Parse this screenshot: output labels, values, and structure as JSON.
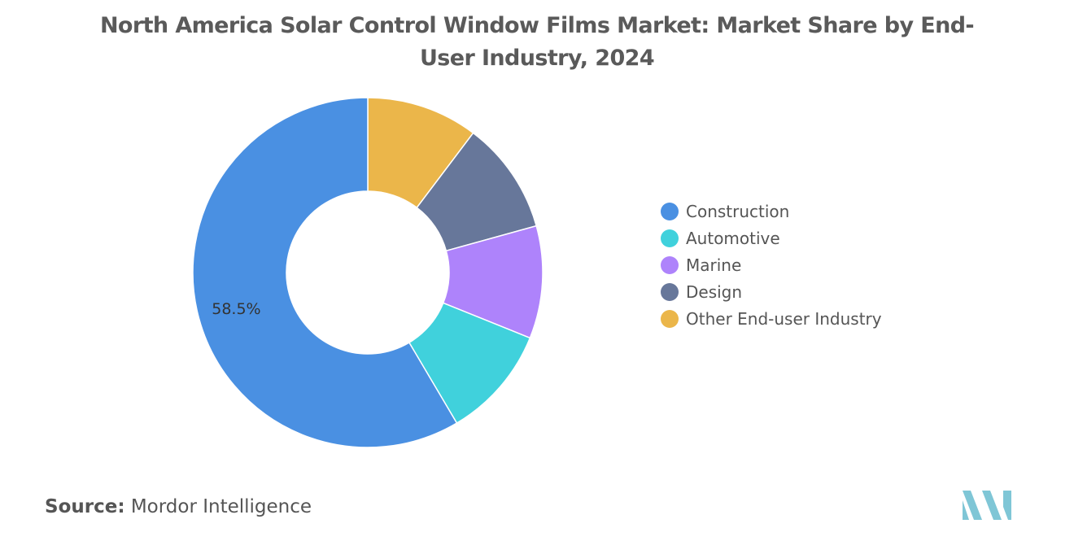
{
  "title": "North America Solar Control Window Films Market: Market Share by End-User Industry, 2024",
  "source": {
    "label": "Source:",
    "text": "Mordor Intelligence"
  },
  "chart_data": {
    "type": "pie",
    "style": "donut",
    "title": "North America Solar Control Window Films Market: Market Share by End-User Industry, 2024",
    "legend_position": "right",
    "categories": [
      "Construction",
      "Automotive",
      "Marine",
      "Design",
      "Other End-user Industry"
    ],
    "values": [
      58.5,
      10.4,
      10.4,
      10.4,
      10.3
    ],
    "colors": [
      "#4a90e2",
      "#40d1dc",
      "#ae83fb",
      "#67779a",
      "#ebb64a"
    ],
    "data_labels": [
      {
        "category": "Construction",
        "text": "58.5%"
      }
    ]
  },
  "colors": {
    "logo": "#7fc6d6"
  }
}
